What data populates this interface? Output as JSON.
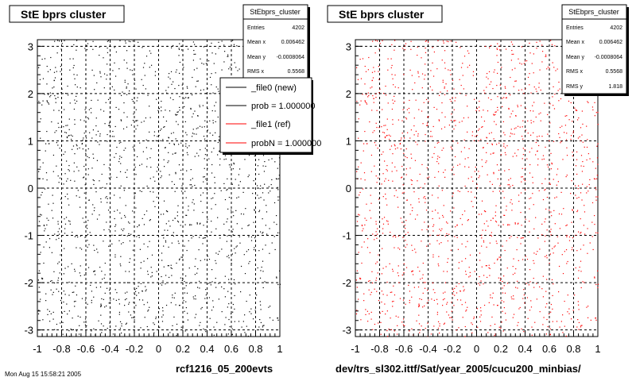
{
  "chart_data": [
    {
      "type": "scatter",
      "title": "StE bprs cluster",
      "xlabel": "rcf1216_05_200evts",
      "ylabel": "",
      "xlim": [
        -1,
        1
      ],
      "ylim": [
        -3.14,
        3.14
      ],
      "xticks": [
        "-1",
        "-0.8",
        "-0.6",
        "-0.4",
        "-0.2",
        "0",
        "0.2",
        "0.4",
        "0.6",
        "0.8",
        "1"
      ],
      "yticks": [
        "-3",
        "-2",
        "-1",
        "0",
        "1",
        "2",
        "3"
      ],
      "grid": true,
      "marker_color": "#000000",
      "n_points_drawn": 1500,
      "stats": {
        "title": "StEbprs_cluster",
        "rows": [
          {
            "label": "Entries",
            "value": "4202"
          },
          {
            "label": "Mean x",
            "value": "0.006462"
          },
          {
            "label": "Mean y",
            "value": "-0.0008064"
          },
          {
            "label": "RMS x",
            "value": "0.5568"
          }
        ]
      },
      "legend": {
        "placement": "top-right",
        "entries": [
          {
            "label": "_file0 (new)",
            "color": "#000000"
          },
          {
            "label": "prob = 1.000000",
            "color": "#000000"
          },
          {
            "label": "_file1 (ref)",
            "color": "#ff0000"
          },
          {
            "label": "probN = 1.000000",
            "color": "#ff0000"
          }
        ]
      }
    },
    {
      "type": "scatter",
      "title": "StE bprs cluster",
      "xlabel": "dev/trs_sl302.ittf/Sat/year_2005/cucu200_minbias/",
      "ylabel": "",
      "xlim": [
        -1,
        1
      ],
      "ylim": [
        -3.14,
        3.14
      ],
      "xticks": [
        "-1",
        "-0.8",
        "-0.6",
        "-0.4",
        "-0.2",
        "0",
        "0.2",
        "0.4",
        "0.6",
        "0.8",
        "1"
      ],
      "yticks": [
        "-3",
        "-2",
        "-1",
        "0",
        "1",
        "2",
        "3"
      ],
      "grid": true,
      "marker_color": "#ff0000",
      "n_points_drawn": 1500,
      "stats": {
        "title": "StEbprs_cluster",
        "rows": [
          {
            "label": "Entries",
            "value": "4202"
          },
          {
            "label": "Mean x",
            "value": "0.006462"
          },
          {
            "label": "Mean y",
            "value": "-0.0008064"
          },
          {
            "label": "RMS x",
            "value": "0.5568"
          },
          {
            "label": "RMS y",
            "value": "1.818"
          }
        ]
      }
    }
  ],
  "footer_text": "Mon Aug 15 15:58:21 2005"
}
